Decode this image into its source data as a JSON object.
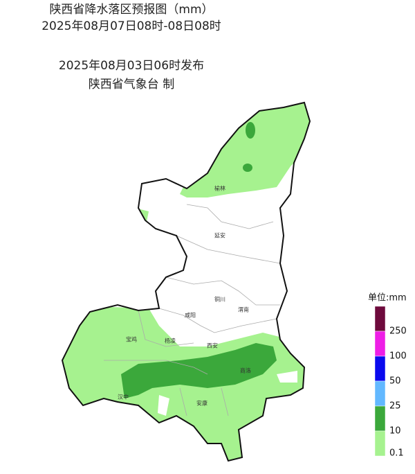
{
  "header": {
    "lines": [
      "陕西省降水落区预报图（mm）",
      "2025年08月07日08时-08日08时",
      "2025年08月03日06时发布",
      "陕西省气象台 制"
    ]
  },
  "cities": [
    {
      "name": "榆林"
    },
    {
      "name": "延安"
    },
    {
      "name": "铜川"
    },
    {
      "name": "渭南"
    },
    {
      "name": "咸阳"
    },
    {
      "name": "宝鸡"
    },
    {
      "name": "杨凌"
    },
    {
      "name": "西安"
    },
    {
      "name": "商洛"
    },
    {
      "name": "汉中"
    },
    {
      "name": "安康"
    }
  ],
  "legend": {
    "title": "单位:mm",
    "items": [
      {
        "label": "250",
        "color": "#6e0a3c"
      },
      {
        "label": "100",
        "color": "#ee1ee6"
      },
      {
        "label": "50",
        "color": "#0a0aee"
      },
      {
        "label": "25",
        "color": "#62b8ff"
      },
      {
        "label": "10",
        "color": "#3ba83b"
      },
      {
        "label": "0.1",
        "color": "#a6f28f"
      }
    ]
  }
}
